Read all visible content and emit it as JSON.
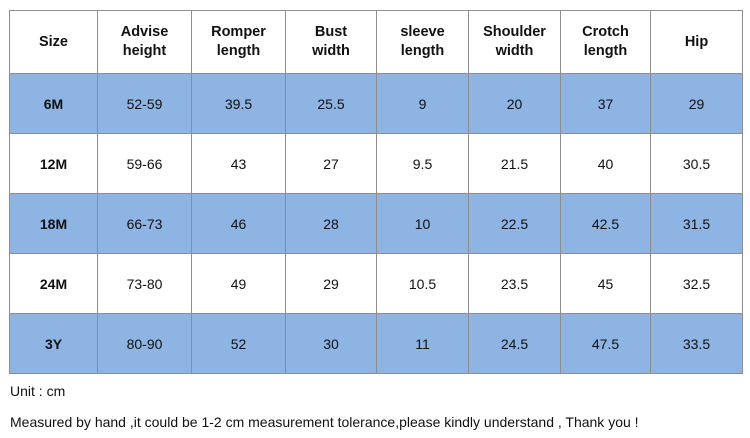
{
  "table": {
    "headers": [
      [
        "Size"
      ],
      [
        "Advise",
        "height"
      ],
      [
        "Romper",
        "length"
      ],
      [
        "Bust",
        "width"
      ],
      [
        "sleeve",
        "length"
      ],
      [
        "Shoulder",
        "width"
      ],
      [
        "Crotch",
        "length"
      ],
      [
        "Hip"
      ]
    ],
    "rows": [
      [
        "6M",
        "52-59",
        "39.5",
        "25.5",
        "9",
        "20",
        "37",
        "29"
      ],
      [
        "12M",
        "59-66",
        "43",
        "27",
        "9.5",
        "21.5",
        "40",
        "30.5"
      ],
      [
        "18M",
        "66-73",
        "46",
        "28",
        "10",
        "22.5",
        "42.5",
        "31.5"
      ],
      [
        "24M",
        "73-80",
        "49",
        "29",
        "10.5",
        "23.5",
        "45",
        "32.5"
      ],
      [
        "3Y",
        "80-90",
        "52",
        "30",
        "11",
        "24.5",
        "47.5",
        "33.5"
      ]
    ],
    "shaded_row_color": "#8db4e3",
    "border_color": "#8d8d8d"
  },
  "notes": {
    "unit": "Unit : cm",
    "tolerance": "Measured by hand ,it could be 1-2 cm measurement tolerance,please kindly understand , Thank you !"
  }
}
